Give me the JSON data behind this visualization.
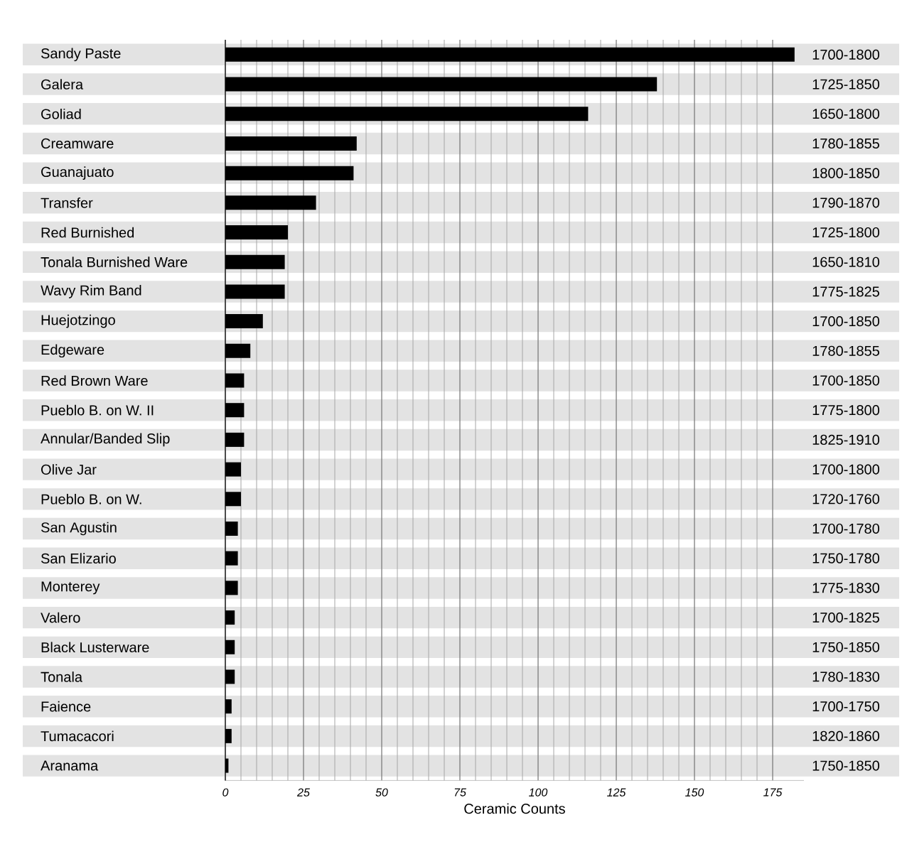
{
  "chart_data": {
    "type": "bar",
    "orientation": "horizontal",
    "xlabel": "Ceramic Counts",
    "categories": [
      "Sandy Paste",
      "Galera",
      "Goliad",
      "Creamware",
      "Guanajuato",
      "Transfer",
      "Red Burnished",
      "Tonala Burnished Ware",
      "Wavy Rim Band",
      "Huejotzingo",
      "Edgeware",
      "Red Brown Ware",
      "Pueblo B. on W. II",
      "Annular/Banded Slip",
      "Olive Jar",
      "Pueblo B. on W.",
      "San Agustin",
      "San Elizario",
      "Monterey",
      "Valero",
      "Black Lusterware",
      "Tonala",
      "Faience",
      "Tumacacori",
      "Aranama"
    ],
    "values": [
      182,
      138,
      116,
      42,
      41,
      29,
      20,
      19,
      19,
      12,
      8,
      6,
      6,
      6,
      5,
      5,
      4,
      4,
      4,
      3,
      3,
      3,
      2,
      2,
      1
    ],
    "color": "#000000",
    "xlim": [
      0,
      185
    ],
    "xticks": [
      0,
      25,
      50,
      75,
      100,
      125,
      150,
      175
    ],
    "grid": "x",
    "annotations": [
      "1700-1800",
      "1725-1850",
      "1650-1800",
      "1780-1855",
      "1800-1850",
      "1790-1870",
      "1725-1800",
      "1650-1810",
      "1775-1825",
      "1700-1850",
      "1780-1855",
      "1700-1850",
      "1775-1800",
      "1825-1910",
      "1700-1800",
      "1720-1760",
      "1700-1780",
      "1750-1780",
      "1775-1830",
      "1700-1825",
      "1750-1850",
      "1780-1830",
      "1700-1750",
      "1820-1860",
      "1750-1850"
    ]
  }
}
